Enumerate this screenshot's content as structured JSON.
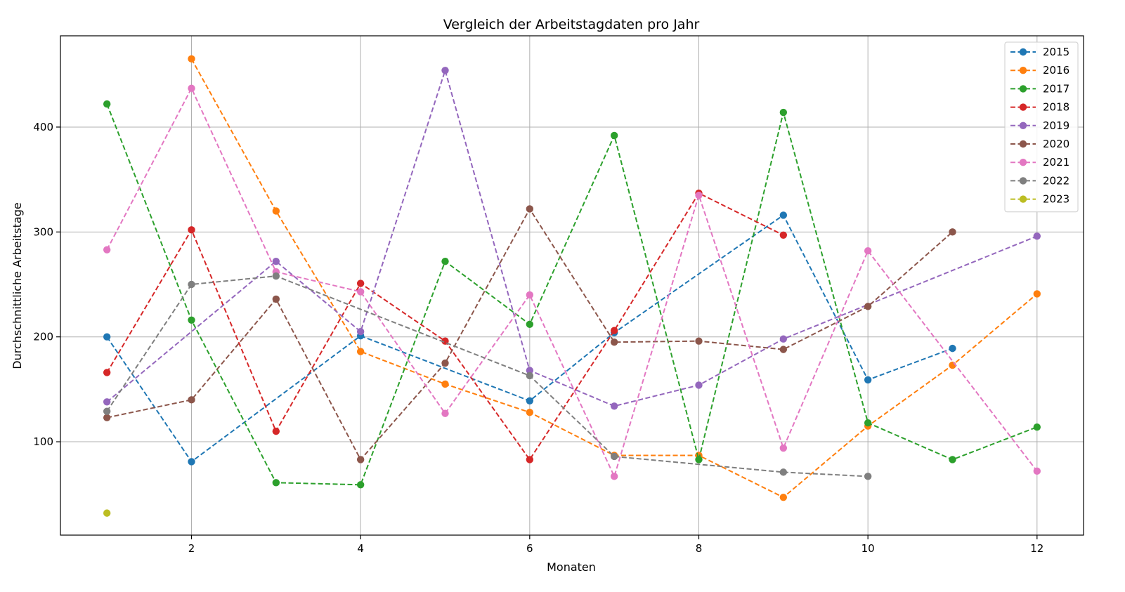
{
  "chart_data": {
    "type": "line",
    "title": "Vergleich der Arbeitstagdaten pro Jahr",
    "xlabel": "Monaten",
    "ylabel": "Durchschnittliche Arbeitstage",
    "xlim": [
      0.45,
      12.55
    ],
    "ylim": [
      11,
      487
    ],
    "xticks": [
      2,
      4,
      6,
      8,
      10,
      12
    ],
    "yticks": [
      100,
      200,
      300,
      400
    ],
    "grid": true,
    "legend_position": "top-right",
    "line_style": "dashed",
    "marker": "circle",
    "series": [
      {
        "name": "2015",
        "color": "#1f77b4",
        "points": [
          [
            1,
            200
          ],
          [
            2,
            81
          ],
          [
            4,
            201
          ],
          [
            6,
            139
          ],
          [
            7,
            204
          ],
          [
            9,
            316
          ],
          [
            10,
            159
          ],
          [
            11,
            189
          ]
        ]
      },
      {
        "name": "2016",
        "color": "#ff7f0e",
        "points": [
          [
            2,
            465
          ],
          [
            3,
            320
          ],
          [
            4,
            186
          ],
          [
            5,
            155
          ],
          [
            6,
            128
          ],
          [
            7,
            87
          ],
          [
            8,
            87
          ],
          [
            9,
            47
          ],
          [
            10,
            115
          ],
          [
            11,
            173
          ],
          [
            12,
            241
          ]
        ]
      },
      {
        "name": "2017",
        "color": "#2ca02c",
        "points": [
          [
            1,
            422
          ],
          [
            2,
            216
          ],
          [
            3,
            61
          ],
          [
            4,
            59
          ],
          [
            5,
            272
          ],
          [
            6,
            212
          ],
          [
            7,
            392
          ],
          [
            8,
            83
          ],
          [
            9,
            414
          ],
          [
            10,
            118
          ],
          [
            11,
            83
          ],
          [
            12,
            114
          ]
        ]
      },
      {
        "name": "2018",
        "color": "#d62728",
        "points": [
          [
            1,
            166
          ],
          [
            2,
            302
          ],
          [
            3,
            110
          ],
          [
            4,
            251
          ],
          [
            5,
            196
          ],
          [
            6,
            83
          ],
          [
            7,
            206
          ],
          [
            8,
            337
          ],
          [
            9,
            297
          ]
        ]
      },
      {
        "name": "2019",
        "color": "#9467bd",
        "points": [
          [
            1,
            138
          ],
          [
            3,
            272
          ],
          [
            4,
            205
          ],
          [
            5,
            454
          ],
          [
            6,
            168
          ],
          [
            7,
            134
          ],
          [
            8,
            154
          ],
          [
            9,
            198
          ],
          [
            12,
            296
          ]
        ]
      },
      {
        "name": "2020",
        "color": "#8c564b",
        "points": [
          [
            1,
            123
          ],
          [
            2,
            140
          ],
          [
            3,
            236
          ],
          [
            4,
            83
          ],
          [
            5,
            175
          ],
          [
            6,
            322
          ],
          [
            7,
            195
          ],
          [
            8,
            196
          ],
          [
            9,
            188
          ],
          [
            10,
            229
          ],
          [
            11,
            300
          ]
        ]
      },
      {
        "name": "2021",
        "color": "#e377c2",
        "points": [
          [
            1,
            283
          ],
          [
            2,
            437
          ],
          [
            3,
            262
          ],
          [
            4,
            243
          ],
          [
            5,
            127
          ],
          [
            6,
            240
          ],
          [
            7,
            67
          ],
          [
            8,
            335
          ],
          [
            9,
            94
          ],
          [
            10,
            282
          ],
          [
            12,
            72
          ]
        ]
      },
      {
        "name": "2022",
        "color": "#7f7f7f",
        "points": [
          [
            1,
            129
          ],
          [
            2,
            250
          ],
          [
            3,
            258
          ],
          [
            6,
            163
          ],
          [
            7,
            86
          ],
          [
            9,
            71
          ],
          [
            10,
            67
          ]
        ]
      },
      {
        "name": "2023",
        "color": "#bcbd22",
        "points": [
          [
            1,
            32
          ]
        ]
      }
    ]
  }
}
